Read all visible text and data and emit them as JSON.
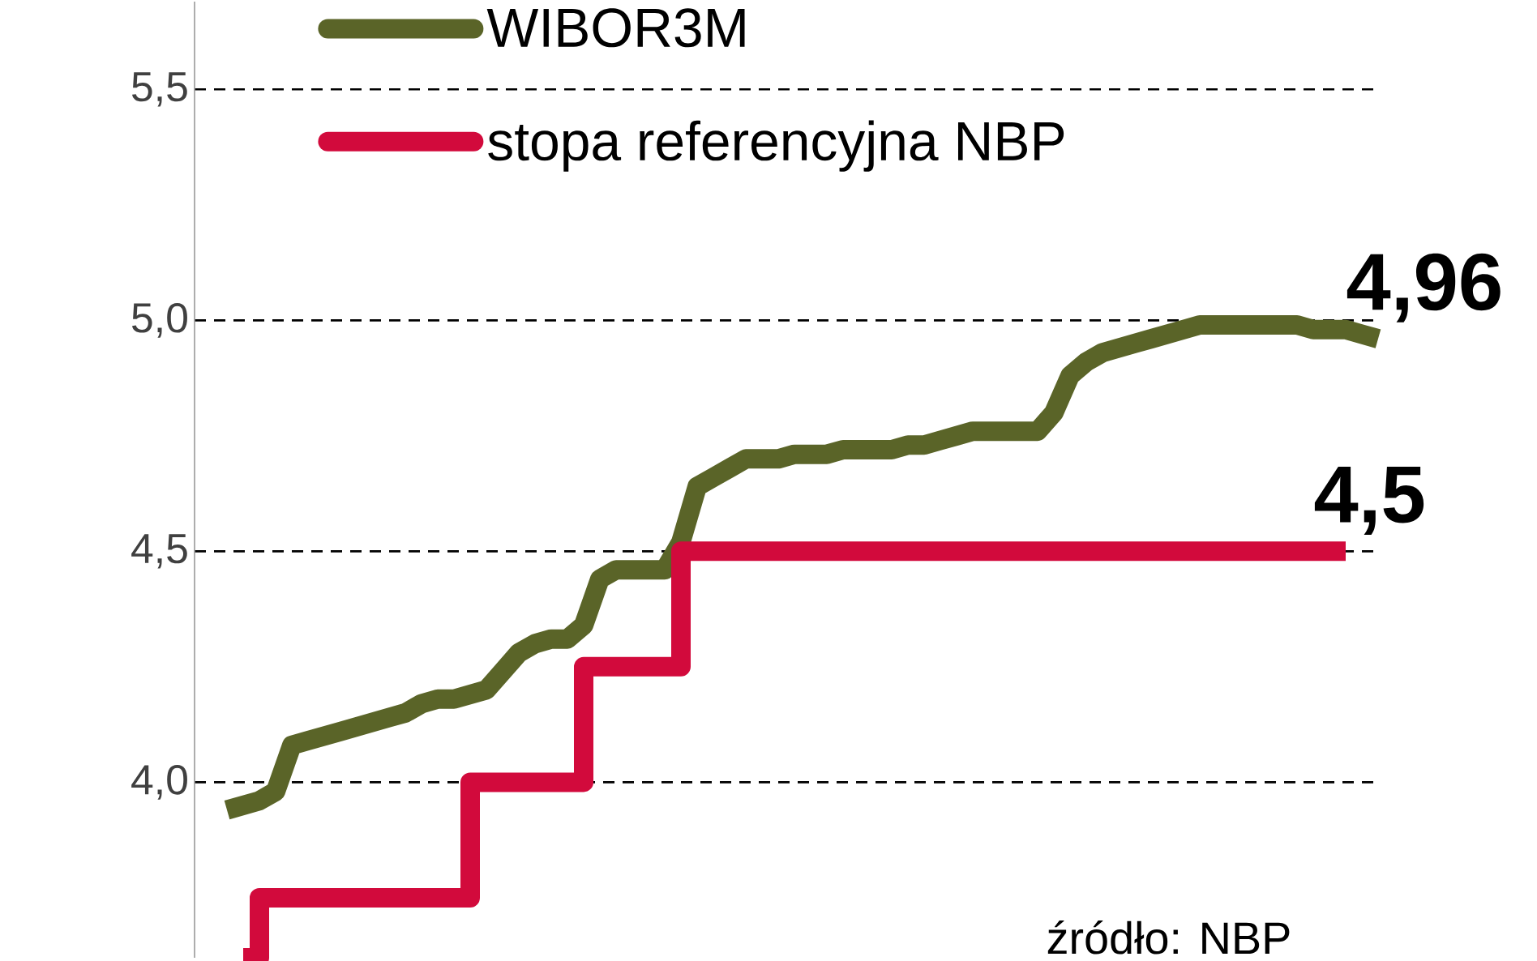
{
  "chart_data": {
    "type": "line",
    "categories": [
      null,
      null,
      null,
      null,
      null,
      null,
      null,
      null,
      null,
      null,
      null,
      null,
      null,
      null,
      null,
      null,
      null,
      null,
      null,
      null,
      null,
      null,
      null,
      null,
      null,
      null,
      null,
      null,
      null,
      null,
      null,
      null,
      null,
      null,
      null,
      null,
      null,
      null,
      null,
      null,
      null,
      null,
      null,
      null,
      null,
      null,
      null,
      null,
      null,
      null,
      null,
      null,
      null,
      null,
      null,
      null,
      null,
      null,
      null,
      null,
      null,
      null,
      null,
      null,
      null,
      null,
      null,
      null,
      null,
      null,
      null,
      null
    ],
    "series": [
      {
        "name": "WIBOR3M",
        "color": "#5a6428",
        "values": [
          3.94,
          3.95,
          3.96,
          3.98,
          4.08,
          4.09,
          4.1,
          4.11,
          4.12,
          4.13,
          4.14,
          4.15,
          4.17,
          4.18,
          4.18,
          4.19,
          4.2,
          4.24,
          4.28,
          4.3,
          4.31,
          4.31,
          4.34,
          4.44,
          4.46,
          4.46,
          4.46,
          4.46,
          4.52,
          4.64,
          4.66,
          4.68,
          4.7,
          4.7,
          4.7,
          4.71,
          4.71,
          4.71,
          4.72,
          4.72,
          4.72,
          4.72,
          4.73,
          4.73,
          4.74,
          4.75,
          4.76,
          4.76,
          4.76,
          4.76,
          4.76,
          4.8,
          4.88,
          4.91,
          4.93,
          4.94,
          4.95,
          4.96,
          4.97,
          4.98,
          4.99,
          4.99,
          4.99,
          4.99,
          4.99,
          4.99,
          4.99,
          4.98,
          4.98,
          4.98,
          4.97,
          4.96
        ],
        "value_labels": [
          null,
          null,
          null,
          null,
          null,
          null,
          null,
          null,
          null,
          null,
          null,
          null,
          null,
          null,
          null,
          null,
          null,
          null,
          null,
          null,
          null,
          null,
          null,
          null,
          null,
          null,
          null,
          null,
          null,
          null,
          null,
          null,
          null,
          null,
          null,
          null,
          null,
          null,
          null,
          null,
          null,
          null,
          null,
          null,
          null,
          null,
          null,
          null,
          null,
          null,
          null,
          null,
          null,
          null,
          null,
          null,
          null,
          null,
          null,
          null,
          null,
          null,
          null,
          null,
          null,
          null,
          null,
          null,
          null,
          null,
          null,
          "4,96"
        ]
      },
      {
        "name": "stopa referencyjna NBP",
        "color": "#d20a3c",
        "type": "step",
        "values": [
          null,
          3.62,
          3.75,
          3.75,
          3.75,
          3.75,
          3.75,
          3.75,
          3.75,
          3.75,
          3.75,
          3.75,
          3.75,
          3.75,
          3.75,
          4.0,
          4.0,
          4.0,
          4.0,
          4.0,
          4.0,
          4.0,
          4.25,
          4.25,
          4.25,
          4.25,
          4.25,
          4.25,
          4.5,
          4.5,
          4.5,
          4.5,
          4.5,
          4.5,
          4.5,
          4.5,
          4.5,
          4.5,
          4.5,
          4.5,
          4.5,
          4.5,
          4.5,
          4.5,
          4.5,
          4.5,
          4.5,
          4.5,
          4.5,
          4.5,
          4.5,
          4.5,
          4.5,
          4.5,
          4.5,
          4.5,
          4.5,
          4.5,
          4.5,
          4.5,
          4.5,
          4.5,
          4.5,
          4.5,
          4.5,
          4.5,
          4.5,
          4.5,
          4.5,
          4.5,
          null,
          null
        ],
        "value_labels": [
          null,
          null,
          null,
          null,
          null,
          null,
          null,
          null,
          null,
          null,
          null,
          null,
          null,
          null,
          null,
          null,
          null,
          null,
          null,
          null,
          null,
          null,
          null,
          null,
          null,
          null,
          null,
          null,
          null,
          null,
          null,
          null,
          null,
          null,
          null,
          null,
          null,
          null,
          null,
          null,
          null,
          null,
          null,
          null,
          null,
          null,
          null,
          null,
          null,
          null,
          null,
          null,
          null,
          null,
          null,
          null,
          null,
          null,
          null,
          null,
          null,
          null,
          null,
          null,
          null,
          null,
          null,
          null,
          null,
          "4,5",
          null,
          null
        ]
      }
    ],
    "ylim": [
      3.62,
      5.69
    ],
    "yticks": [
      {
        "value": 4.0,
        "label": "4,0"
      },
      {
        "value": 4.5,
        "label": "4,5"
      },
      {
        "value": 5.0,
        "label": "5,0"
      },
      {
        "value": 5.5,
        "label": "5,5"
      }
    ],
    "grid": "y",
    "line_style": "solid",
    "marker": "none",
    "legend": "top left",
    "annotations": [
      "źródło: NBP"
    ]
  }
}
